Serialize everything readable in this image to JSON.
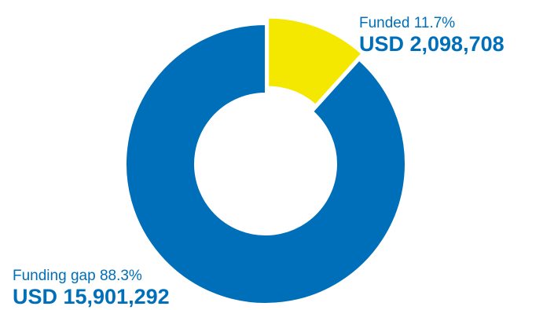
{
  "chart_data": {
    "type": "pie",
    "variant": "donut",
    "title": "",
    "currency": "USD",
    "slices": [
      {
        "name": "Funded",
        "percent": 11.7,
        "value": 2098708,
        "pct_text": "11.7%",
        "amount_text": "USD 2,098,708",
        "color": "#f5e800",
        "exploded": true
      },
      {
        "name": "Funding gap",
        "percent": 88.3,
        "value": 15901292,
        "pct_text": "88.3%",
        "amount_text": "USD 15,901,292",
        "color": "#006fb9",
        "exploded": false
      }
    ],
    "label_color": "#006fb9",
    "legend": "none"
  }
}
